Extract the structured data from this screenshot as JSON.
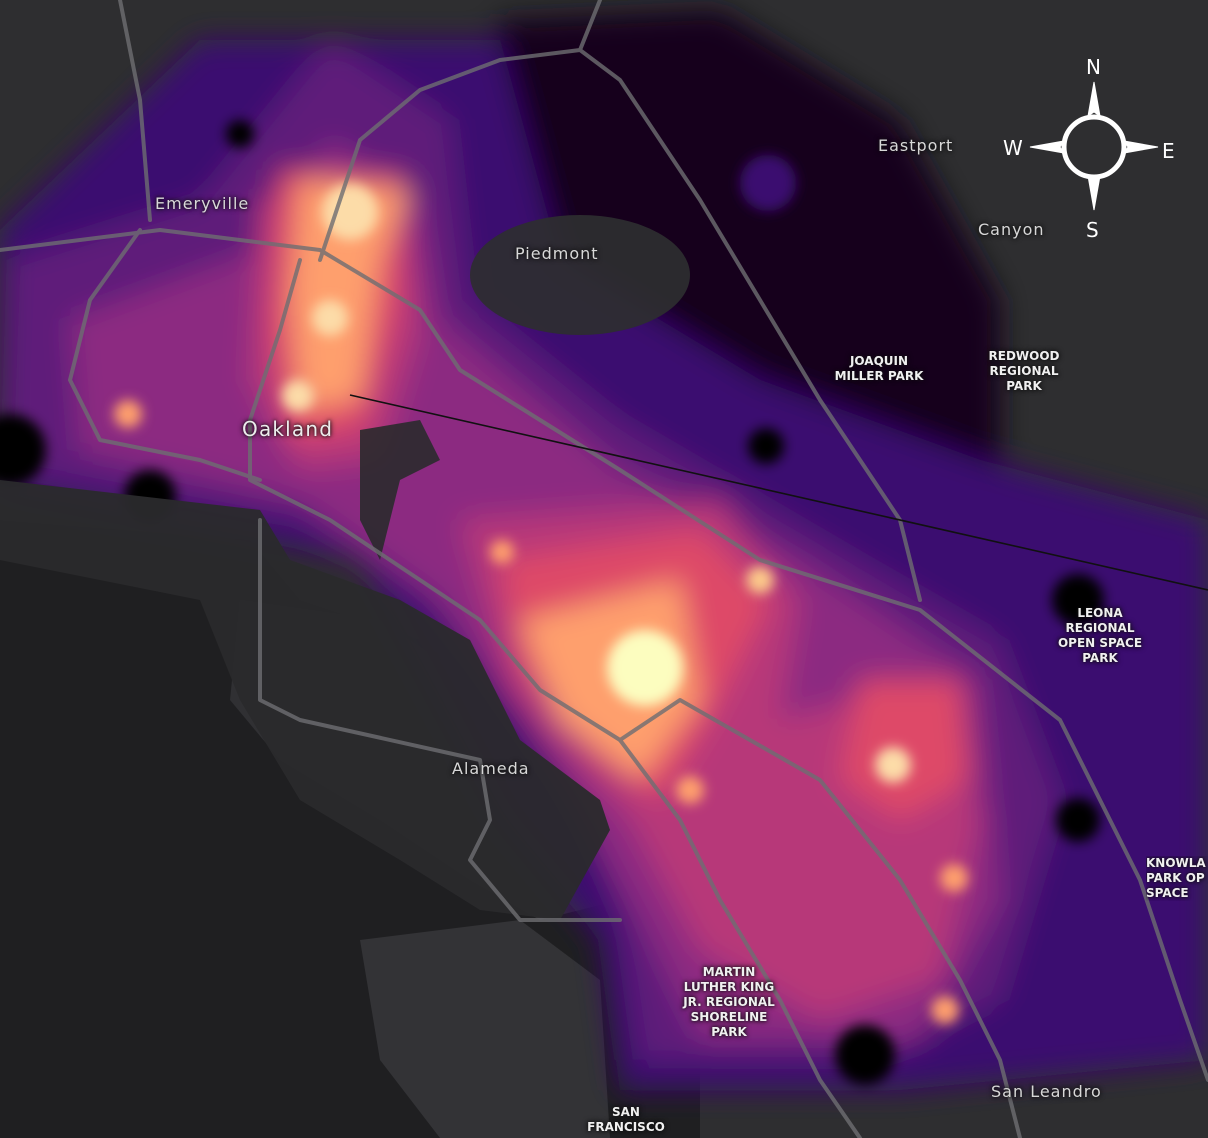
{
  "map": {
    "compass": {
      "n": "N",
      "e": "E",
      "s": "S",
      "w": "W"
    },
    "places": {
      "emeryville": "Emeryville",
      "oakland": "Oakland",
      "piedmont": "Piedmont",
      "alameda": "Alameda",
      "eastport": "Eastport",
      "canyon": "Canyon",
      "san_leandro": "San Leandro"
    },
    "parks": {
      "joaquin_miller": "JOAQUIN\nMILLER PARK",
      "redwood": "REDWOOD\nREGIONAL\nPARK",
      "leona": "LEONA\nREGIONAL\nOPEN SPACE\nPARK",
      "mlk": "MARTIN\nLUTHER KING\nJR. REGIONAL\nSHORELINE\nPARK",
      "knowland": "KNOWLA\nPARK OP\nSPACE",
      "sf": "SAN\nFRANCISCO"
    },
    "colors": {
      "land": "#2e2e30",
      "water": "#1f1f21",
      "road": "#6e6e72",
      "density_low": "#000004",
      "density_1": "#3b0f70",
      "density_2": "#8c2981",
      "density_3": "#de4968",
      "density_4": "#fe9f6d",
      "density_high": "#fcfdbf"
    }
  }
}
